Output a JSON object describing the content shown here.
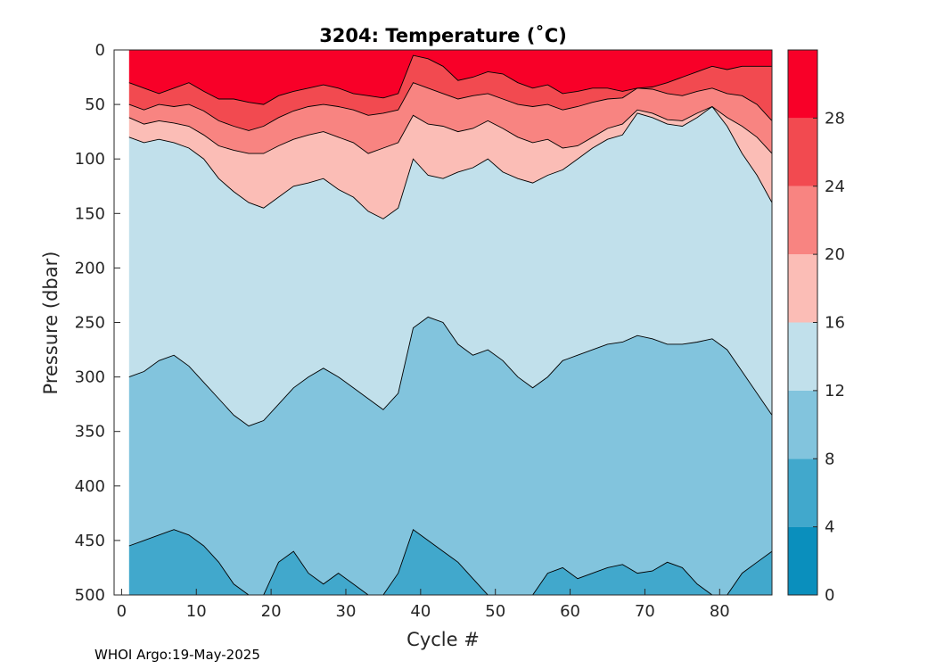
{
  "chart_data": {
    "type": "heatmap",
    "title": "3204:  Temperature (˚C)",
    "xlabel": "Cycle #",
    "ylabel": "Pressure (dbar)",
    "xlim": [
      -1,
      87
    ],
    "ylim": [
      0,
      500
    ],
    "y_reversed": true,
    "x_ticks": [
      0,
      10,
      20,
      30,
      40,
      50,
      60,
      70,
      80
    ],
    "y_ticks": [
      0,
      50,
      100,
      150,
      200,
      250,
      300,
      350,
      400,
      450,
      500
    ],
    "colorbar": {
      "ticks": [
        0,
        4,
        8,
        12,
        16,
        20,
        24,
        28
      ],
      "bands": [
        {
          "from": 0,
          "to": 4,
          "color": "#0a8fbd"
        },
        {
          "from": 4,
          "to": 8,
          "color": "#41a8cc"
        },
        {
          "from": 8,
          "to": 12,
          "color": "#82c4dd"
        },
        {
          "from": 12,
          "to": 16,
          "color": "#c1e0eb"
        },
        {
          "from": 16,
          "to": 20,
          "color": "#fbbdb6"
        },
        {
          "from": 20,
          "to": 24,
          "color": "#f88481"
        },
        {
          "from": 24,
          "to": 28,
          "color": "#f24a50"
        },
        {
          "from": 28,
          "to": 32,
          "color": "#f80028"
        }
      ]
    },
    "x": [
      1,
      3,
      5,
      7,
      9,
      11,
      13,
      15,
      17,
      19,
      21,
      23,
      25,
      27,
      29,
      31,
      33,
      35,
      37,
      39,
      41,
      43,
      45,
      47,
      49,
      51,
      53,
      55,
      57,
      59,
      61,
      63,
      65,
      67,
      69,
      71,
      73,
      75,
      77,
      79,
      81,
      83,
      85,
      87
    ],
    "isotherm_depths": [
      {
        "temperature": 28,
        "depth": [
          30,
          35,
          40,
          35,
          30,
          38,
          45,
          45,
          48,
          50,
          42,
          38,
          35,
          32,
          35,
          40,
          42,
          44,
          40,
          5,
          8,
          15,
          28,
          25,
          20,
          22,
          30,
          35,
          32,
          40,
          38,
          35,
          35,
          38,
          35,
          34,
          30,
          25,
          20,
          15,
          18,
          15,
          15,
          15
        ]
      },
      {
        "temperature": 24,
        "depth": [
          50,
          55,
          50,
          52,
          50,
          56,
          65,
          70,
          74,
          70,
          62,
          56,
          52,
          50,
          52,
          55,
          60,
          58,
          55,
          30,
          35,
          40,
          45,
          42,
          40,
          45,
          50,
          52,
          50,
          55,
          52,
          48,
          45,
          44,
          35,
          36,
          40,
          42,
          38,
          35,
          40,
          42,
          50,
          65
        ]
      },
      {
        "temperature": 20,
        "depth": [
          62,
          68,
          65,
          67,
          70,
          78,
          88,
          92,
          95,
          95,
          88,
          82,
          78,
          75,
          80,
          85,
          95,
          90,
          85,
          60,
          68,
          70,
          75,
          72,
          65,
          72,
          80,
          85,
          82,
          90,
          88,
          80,
          72,
          68,
          55,
          58,
          64,
          65,
          58,
          52,
          62,
          70,
          80,
          95
        ]
      },
      {
        "temperature": 16,
        "depth": [
          80,
          85,
          82,
          85,
          90,
          100,
          118,
          130,
          140,
          145,
          135,
          125,
          122,
          118,
          128,
          135,
          148,
          155,
          145,
          100,
          115,
          118,
          112,
          108,
          100,
          112,
          118,
          122,
          115,
          110,
          100,
          90,
          82,
          78,
          58,
          62,
          68,
          70,
          62,
          52,
          70,
          95,
          115,
          140
        ]
      },
      {
        "temperature": 12,
        "depth": [
          300,
          295,
          285,
          280,
          290,
          305,
          320,
          335,
          345,
          340,
          325,
          310,
          300,
          292,
          300,
          310,
          320,
          330,
          315,
          255,
          245,
          250,
          270,
          280,
          275,
          285,
          300,
          310,
          300,
          285,
          280,
          275,
          270,
          268,
          262,
          265,
          270,
          270,
          268,
          265,
          275,
          295,
          315,
          335
        ]
      },
      {
        "temperature": 8,
        "depth": [
          455,
          450,
          445,
          440,
          445,
          455,
          470,
          490,
          505,
          505,
          470,
          460,
          480,
          490,
          480,
          490,
          500,
          505,
          480,
          440,
          450,
          460,
          470,
          485,
          500,
          505,
          505,
          500,
          480,
          475,
          485,
          480,
          475,
          472,
          480,
          478,
          470,
          475,
          490,
          505,
          500,
          480,
          470,
          460
        ]
      }
    ],
    "grid": false
  },
  "footer": {
    "label": "WHOI Argo:19-May-2025"
  }
}
